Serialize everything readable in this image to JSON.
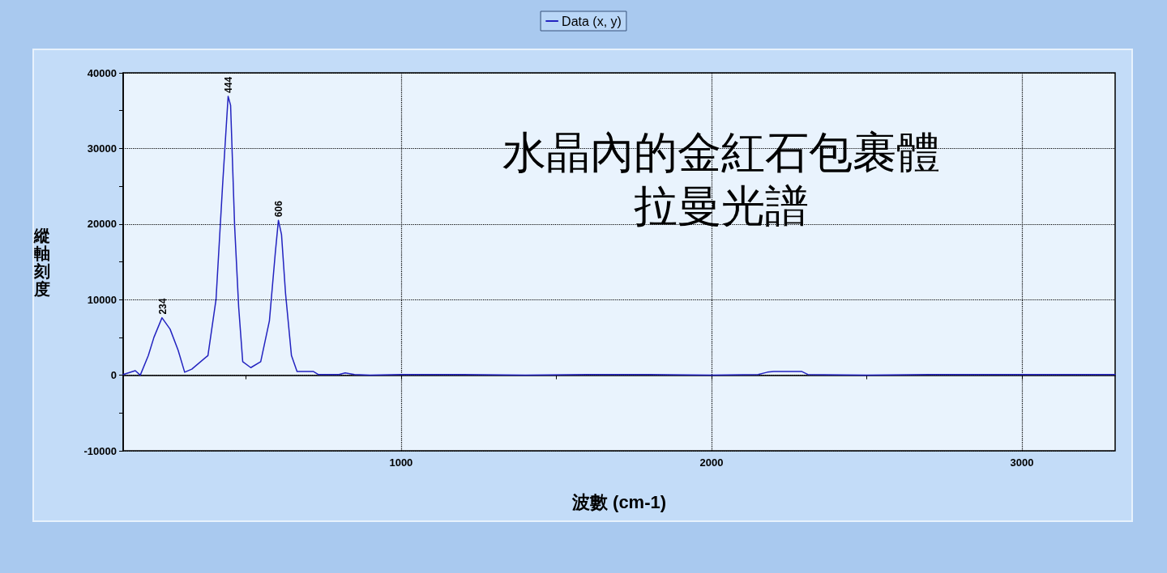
{
  "chart_data": {
    "type": "line",
    "title": "水晶內的金紅石包裹體拉曼光譜",
    "xlabel": "波數 (cm-1)",
    "ylabel": "縱軸刻度",
    "xlim": [
      105,
      3300
    ],
    "xticks": [
      {
        "value": 500,
        "label": null
      },
      1000,
      {
        "value": 1500,
        "label": null
      },
      2000,
      {
        "value": 2500,
        "label": null
      },
      3000
    ],
    "ylim": [
      -10000,
      40000
    ],
    "yticks": [
      -10000,
      {
        "value": -5000,
        "label": null
      },
      0,
      {
        "value": 5000,
        "label": null
      },
      10000,
      {
        "value": 15000,
        "label": null
      },
      20000,
      {
        "value": 25000,
        "label": null
      },
      30000,
      {
        "value": 35000,
        "label": null
      },
      40000
    ],
    "grid": true,
    "legend": "top",
    "marker": "none",
    "line_style": "solid",
    "series": [
      {
        "name": "Data (x, y)",
        "color": "#2323c0",
        "x": [
          105,
          144,
          160,
          186,
          204,
          230,
          256,
          282,
          303,
          326,
          378,
          404,
          425,
          443,
          451,
          464,
          477,
          490,
          516,
          548,
          576,
          595,
          605,
          615,
          628,
          647,
          665,
          717,
          733,
          800,
          820,
          850,
          900,
          1000,
          1200,
          1400,
          1600,
          1800,
          2000,
          2150,
          2180,
          2200,
          2290,
          2310,
          2500,
          2700,
          2900,
          3100,
          3300
        ],
        "values": [
          100,
          600,
          0,
          2600,
          5000,
          7600,
          6100,
          3300,
          400,
          800,
          2600,
          10000,
          25000,
          36900,
          35700,
          19700,
          9000,
          1800,
          1000,
          1800,
          7200,
          16200,
          20500,
          18600,
          10800,
          2600,
          500,
          500,
          100,
          100,
          300,
          100,
          0,
          100,
          100,
          0,
          100,
          100,
          0,
          100,
          400,
          500,
          500,
          100,
          0,
          100,
          100,
          100,
          100
        ]
      }
    ],
    "annotations": [
      {
        "text": "234",
        "x": 234,
        "y": 7600
      },
      {
        "text": "444",
        "x": 444,
        "y": 36900
      },
      {
        "text": "606",
        "x": 606,
        "y": 20500
      }
    ]
  }
}
